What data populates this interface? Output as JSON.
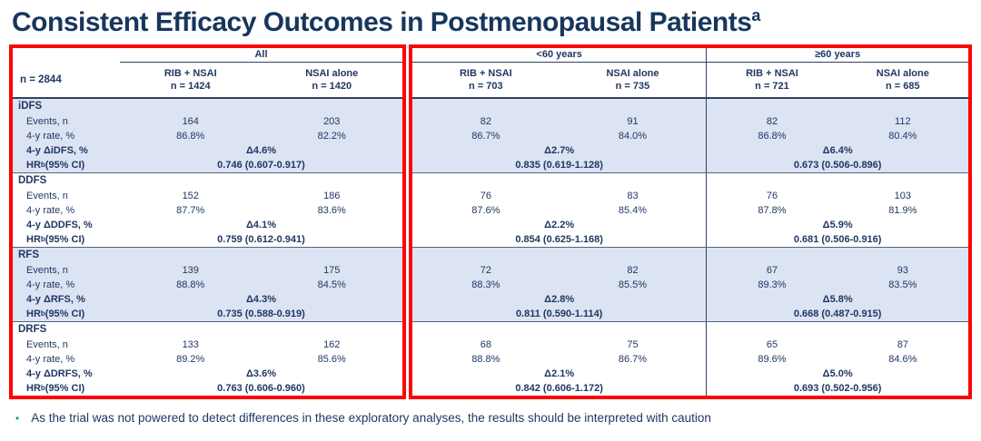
{
  "title": {
    "text": "Consistent Efficacy Outcomes in Postmenopausal Patients",
    "superscript": "a"
  },
  "colors": {
    "navy_text": "#1f3864",
    "title_navy": "#17365d",
    "row_highlight": "#dce3f2",
    "red_outline": "#fb0505",
    "bullet_teal": "#279989"
  },
  "table": {
    "n_label": "n = 2844",
    "groups": [
      {
        "label": "All",
        "arms": [
          {
            "name": "RIB + NSAI",
            "n": "n = 1424"
          },
          {
            "name": "NSAI alone",
            "n": "n = 1420"
          }
        ]
      },
      {
        "label": "<60 years",
        "arms": [
          {
            "name": "RIB + NSAI",
            "n": "n = 703"
          },
          {
            "name": "NSAI alone",
            "n": "n = 735"
          }
        ]
      },
      {
        "label": "≥60 years",
        "arms": [
          {
            "name": "RIB + NSAI",
            "n": "n = 721"
          },
          {
            "name": "NSAI alone",
            "n": "n = 685"
          }
        ]
      }
    ],
    "sections": [
      {
        "name": "iDFS",
        "events_label": "Events, n",
        "rate_label": "4-y rate, %",
        "delta_label": "4-y ΔiDFS, %",
        "hr_label_pre": "HR",
        "hr_label_sup": "b",
        "hr_label_post": " (95% CI)",
        "events": [
          "164",
          "203",
          "82",
          "91",
          "82",
          "112"
        ],
        "rates": [
          "86.8%",
          "82.2%",
          "86.7%",
          "84.0%",
          "86.8%",
          "80.4%"
        ],
        "deltas": [
          "Δ4.6%",
          "Δ2.7%",
          "Δ6.4%"
        ],
        "hrs": [
          "0.746 (0.607-0.917)",
          "0.835 (0.619-1.128)",
          "0.673 (0.506-0.896)"
        ]
      },
      {
        "name": "DDFS",
        "events_label": "Events, n",
        "rate_label": "4-y rate, %",
        "delta_label": "4-y ΔDDFS, %",
        "hr_label_pre": "HR",
        "hr_label_sup": "b",
        "hr_label_post": " (95% CI)",
        "events": [
          "152",
          "186",
          "76",
          "83",
          "76",
          "103"
        ],
        "rates": [
          "87.7%",
          "83.6%",
          "87.6%",
          "85.4%",
          "87.8%",
          "81.9%"
        ],
        "deltas": [
          "Δ4.1%",
          "Δ2.2%",
          "Δ5.9%"
        ],
        "hrs": [
          "0.759 (0.612-0.941)",
          "0.854 (0.625-1.168)",
          "0.681 (0.506-0.916)"
        ]
      },
      {
        "name": "RFS",
        "events_label": "Events, n",
        "rate_label": "4-y rate, %",
        "delta_label": "4-y ΔRFS, %",
        "hr_label_pre": "HR",
        "hr_label_sup": "b",
        "hr_label_post": " (95% CI)",
        "events": [
          "139",
          "175",
          "72",
          "82",
          "67",
          "93"
        ],
        "rates": [
          "88.8%",
          "84.5%",
          "88.3%",
          "85.5%",
          "89.3%",
          "83.5%"
        ],
        "deltas": [
          "Δ4.3%",
          "Δ2.8%",
          "Δ5.8%"
        ],
        "hrs": [
          "0.735 (0.588-0.919)",
          "0.811 (0.590-1.114)",
          "0.668 (0.487-0.915)"
        ]
      },
      {
        "name": "DRFS",
        "events_label": "Events, n",
        "rate_label": "4-y rate, %",
        "delta_label": "4-y ΔDRFS, %",
        "hr_label_pre": "HR",
        "hr_label_sup": "b",
        "hr_label_post": " (95% CI)",
        "events": [
          "133",
          "162",
          "68",
          "75",
          "65",
          "87"
        ],
        "rates": [
          "89.2%",
          "85.6%",
          "88.8%",
          "86.7%",
          "89.6%",
          "84.6%"
        ],
        "deltas": [
          "Δ3.6%",
          "Δ2.1%",
          "Δ5.0%"
        ],
        "hrs": [
          "0.763 (0.606-0.960)",
          "0.842 (0.606-1.172)",
          "0.693 (0.502-0.956)"
        ]
      }
    ]
  },
  "footnote": {
    "bullet": "•",
    "text": "As the trial was not powered to detect differences in these exploratory analyses, the results should be interpreted with caution"
  }
}
